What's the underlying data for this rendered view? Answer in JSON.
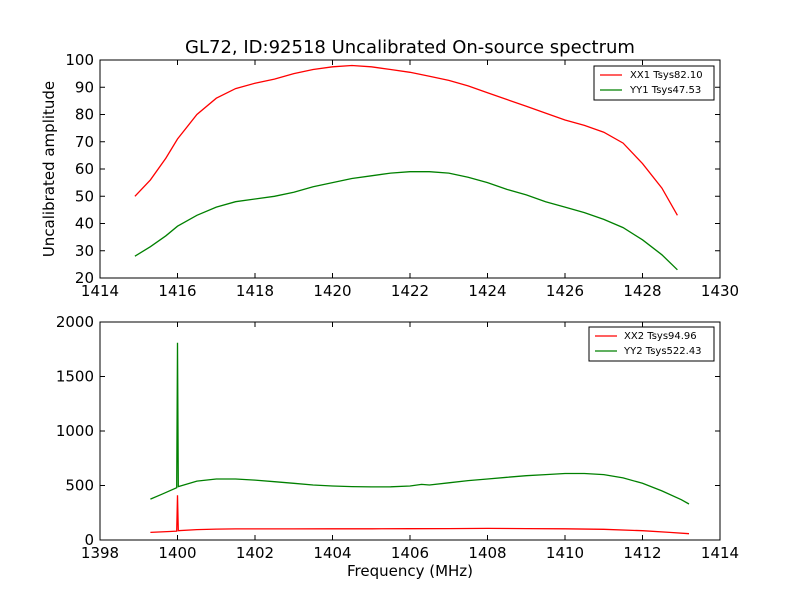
{
  "chart_data": [
    {
      "type": "line",
      "title": "GL72, ID:92518 Uncalibrated On-source spectrum",
      "xlabel": "",
      "ylabel": "Uncalibrated amplitude",
      "xlim": [
        1414,
        1430
      ],
      "ylim": [
        20,
        100
      ],
      "xticks": [
        "1414",
        "1416",
        "1418",
        "1420",
        "1422",
        "1424",
        "1426",
        "1428",
        "1430"
      ],
      "yticks": [
        "20",
        "30",
        "40",
        "50",
        "60",
        "70",
        "80",
        "90",
        "100"
      ],
      "legend_position": "top-right",
      "grid": false,
      "series": [
        {
          "name": "XX1 Tsys82.10",
          "color": "#ff0000",
          "points": [
            [
              1414.9,
              50.0
            ],
            [
              1415.3,
              56.0
            ],
            [
              1415.7,
              64.0
            ],
            [
              1416.0,
              71.0
            ],
            [
              1416.5,
              80.0
            ],
            [
              1417.0,
              86.0
            ],
            [
              1417.5,
              89.5
            ],
            [
              1418.0,
              91.5
            ],
            [
              1418.5,
              93.0
            ],
            [
              1419.0,
              95.0
            ],
            [
              1419.5,
              96.5
            ],
            [
              1420.0,
              97.5
            ],
            [
              1420.5,
              98.0
            ],
            [
              1421.0,
              97.5
            ],
            [
              1421.5,
              96.5
            ],
            [
              1422.0,
              95.5
            ],
            [
              1422.5,
              94.0
            ],
            [
              1423.0,
              92.5
            ],
            [
              1423.5,
              90.5
            ],
            [
              1424.0,
              88.0
            ],
            [
              1424.5,
              85.5
            ],
            [
              1425.0,
              83.0
            ],
            [
              1425.5,
              80.5
            ],
            [
              1426.0,
              78.0
            ],
            [
              1426.5,
              76.0
            ],
            [
              1427.0,
              73.5
            ],
            [
              1427.5,
              69.5
            ],
            [
              1428.0,
              62.0
            ],
            [
              1428.5,
              53.0
            ],
            [
              1428.9,
              43.0
            ]
          ]
        },
        {
          "name": "YY1 Tsys47.53",
          "color": "#008000",
          "points": [
            [
              1414.9,
              28.0
            ],
            [
              1415.3,
              31.5
            ],
            [
              1415.7,
              35.5
            ],
            [
              1416.0,
              39.0
            ],
            [
              1416.5,
              43.0
            ],
            [
              1417.0,
              46.0
            ],
            [
              1417.5,
              48.0
            ],
            [
              1418.0,
              49.0
            ],
            [
              1418.5,
              50.0
            ],
            [
              1419.0,
              51.5
            ],
            [
              1419.5,
              53.5
            ],
            [
              1420.0,
              55.0
            ],
            [
              1420.5,
              56.5
            ],
            [
              1421.0,
              57.5
            ],
            [
              1421.5,
              58.5
            ],
            [
              1422.0,
              59.0
            ],
            [
              1422.5,
              59.0
            ],
            [
              1423.0,
              58.5
            ],
            [
              1423.5,
              57.0
            ],
            [
              1424.0,
              55.0
            ],
            [
              1424.5,
              52.5
            ],
            [
              1425.0,
              50.5
            ],
            [
              1425.5,
              48.0
            ],
            [
              1426.0,
              46.0
            ],
            [
              1426.5,
              44.0
            ],
            [
              1427.0,
              41.5
            ],
            [
              1427.5,
              38.5
            ],
            [
              1428.0,
              34.0
            ],
            [
              1428.5,
              28.5
            ],
            [
              1428.9,
              23.0
            ]
          ]
        }
      ]
    },
    {
      "type": "line",
      "title": "",
      "xlabel": "Frequency (MHz)",
      "ylabel": "",
      "xlim": [
        1398,
        1414
      ],
      "ylim": [
        0,
        2000
      ],
      "xticks": [
        "1398",
        "1400",
        "1402",
        "1404",
        "1406",
        "1408",
        "1410",
        "1412",
        "1414"
      ],
      "yticks": [
        "0",
        "500",
        "1000",
        "1500",
        "2000"
      ],
      "legend_position": "top-right",
      "grid": false,
      "series": [
        {
          "name": "XX2 Tsys94.96",
          "color": "#ff0000",
          "points": [
            [
              1399.3,
              70
            ],
            [
              1399.8,
              78
            ],
            [
              1399.98,
              82
            ],
            [
              1400.0,
              410
            ],
            [
              1400.02,
              85
            ],
            [
              1400.5,
              95
            ],
            [
              1401.0,
              100
            ],
            [
              1401.5,
              102
            ],
            [
              1402.0,
              102
            ],
            [
              1403.0,
              102
            ],
            [
              1404.0,
              103
            ],
            [
              1405.0,
              103
            ],
            [
              1406.0,
              104
            ],
            [
              1407.0,
              105
            ],
            [
              1408.0,
              106
            ],
            [
              1409.0,
              105
            ],
            [
              1410.0,
              103
            ],
            [
              1411.0,
              98
            ],
            [
              1412.0,
              85
            ],
            [
              1412.7,
              70
            ],
            [
              1413.2,
              58
            ]
          ]
        },
        {
          "name": "YY2 Tsys522.43",
          "color": "#008000",
          "points": [
            [
              1399.3,
              375
            ],
            [
              1399.6,
              420
            ],
            [
              1399.98,
              480
            ],
            [
              1400.0,
              1810
            ],
            [
              1400.02,
              490
            ],
            [
              1400.5,
              540
            ],
            [
              1401.0,
              560
            ],
            [
              1401.5,
              560
            ],
            [
              1402.0,
              550
            ],
            [
              1402.5,
              535
            ],
            [
              1403.0,
              520
            ],
            [
              1403.5,
              505
            ],
            [
              1404.0,
              495
            ],
            [
              1404.5,
              490
            ],
            [
              1405.0,
              487
            ],
            [
              1405.5,
              488
            ],
            [
              1406.0,
              495
            ],
            [
              1406.3,
              510
            ],
            [
              1406.5,
              505
            ],
            [
              1407.0,
              525
            ],
            [
              1407.5,
              545
            ],
            [
              1408.0,
              560
            ],
            [
              1408.5,
              575
            ],
            [
              1409.0,
              590
            ],
            [
              1409.5,
              600
            ],
            [
              1410.0,
              610
            ],
            [
              1410.5,
              610
            ],
            [
              1411.0,
              600
            ],
            [
              1411.5,
              570
            ],
            [
              1412.0,
              520
            ],
            [
              1412.5,
              450
            ],
            [
              1413.0,
              370
            ],
            [
              1413.2,
              330
            ]
          ]
        }
      ]
    }
  ]
}
